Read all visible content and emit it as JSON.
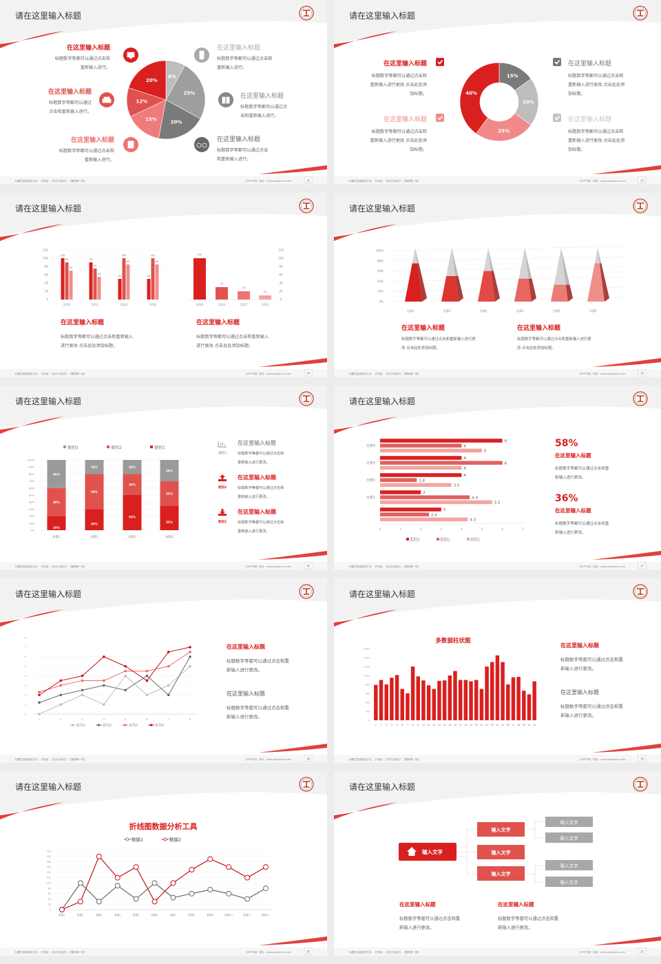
{
  "footer": {
    "left": "标题栏批量修改方法：【开始】-【幻灯片版式】-【替换第一张】",
    "right": "【OPPT网】 网址：www.pptgenius.com"
  },
  "colors": {
    "red": "#d9201f",
    "mid_red": "#e0524d",
    "pink": "#f08a8a",
    "light_pink": "#f2a5a0",
    "gray": "#9e9e9e",
    "dark_gray": "#6e6e6e",
    "light_gray": "#bdbdbd"
  },
  "slides": [
    {
      "title": "请在这里输入标题",
      "page": "12"
    },
    {
      "title": "请在这里输入标题",
      "page": "13"
    },
    {
      "title": "请在这里输入标题",
      "page": "14"
    },
    {
      "title": "请在这里输入标题",
      "page": "15"
    },
    {
      "title": "请在这里输入标题",
      "page": "16"
    },
    {
      "title": "请在这里输入标题",
      "page": "17"
    },
    {
      "title": "请在这里输入标题",
      "page": "18"
    },
    {
      "title": "请在这里输入标题",
      "page": "19"
    },
    {
      "title": "请在这里输入标题",
      "page": "20"
    },
    {
      "title": "请在这里输入标题",
      "page": "21"
    }
  ],
  "slide1": {
    "items": [
      {
        "title": "在这里输入标题",
        "lines": [
          "标题数字等都可以通过点击和",
          "重新输入进行。"
        ],
        "icon": "monitor-icon",
        "color": "#d9201f"
      },
      {
        "title": "在这里输入标题",
        "lines": [
          "标题数字等都可以通过",
          "点击和重新输入进行。"
        ],
        "icon": "car-icon",
        "color": "#e0524d"
      },
      {
        "title": "在这里输入标题",
        "lines": [
          "标题数字等都可以通过点击和",
          "重新输入进行。"
        ],
        "icon": "book-icon",
        "color": "#ee7070"
      },
      {
        "title": "在这里输入标题",
        "lines": [
          "标题数字等都可以通过点击和",
          "重新输入进行。"
        ],
        "icon": "phone-icon",
        "color": "#aaaaaa"
      },
      {
        "title": "在这里输入标题",
        "lines": [
          "标题数字等都可以通过点",
          "击和重新输入进行。"
        ],
        "icon": "binoculars-icon",
        "color": "#888888"
      },
      {
        "title": "在这里输入标题",
        "lines": [
          "标题数字等都可以通过点击",
          "和重新输入进行。"
        ],
        "icon": "bicycle-icon",
        "color": "#666666"
      }
    ]
  },
  "slide2": {
    "items": [
      {
        "title": "在这里输入标题",
        "lines": [
          "标题数字等都可以通过点击和",
          "重新输入进行更改 点击此处添",
          "加标题。"
        ],
        "color": "#d9201f"
      },
      {
        "title": "在这里输入标题",
        "lines": [
          "标题数字等都可以通过点击和",
          "重新输入进行更改 点击此处添",
          "加标题。"
        ],
        "color": "#f08a8a"
      },
      {
        "title": "在这里输入标题",
        "lines": [
          "标题数字等都可以通过点击和",
          "重新输入进行更改 点击此处添",
          "加标题。"
        ],
        "color": "#777777"
      },
      {
        "title": "在这里输入标题",
        "lines": [
          "标题数字等都可以通过点击和",
          "重新输入进行更改 点击此处添",
          "加标题。"
        ],
        "color": "#c4c4c4"
      }
    ]
  },
  "slide3": {
    "blocks": [
      {
        "title": "在这里输入标题",
        "lines": [
          "标题数字等都可以通过点击和重新输入",
          "进行更改 点击此处添加标题。"
        ]
      },
      {
        "title": "在这里输入标题",
        "lines": [
          "标题数字等都可以通过点击和重新输入",
          "进行更改 点击此处添加标题。"
        ]
      }
    ]
  },
  "slide4": {
    "blocks": [
      {
        "title": "在这里输入标题",
        "lines": [
          "标题数字等都可以通过点击和重新输入进行更",
          "改 点击此处添加标题。"
        ]
      },
      {
        "title": "在这里输入标题",
        "lines": [
          "标题数字等都可以通过点击和重新输入进行更",
          "改 点击此处添加标题。"
        ]
      }
    ]
  },
  "slide5": {
    "items": [
      {
        "label": "类别3",
        "title": "在这里输入标题",
        "lines": [
          "标题数字等都可以通过点击和",
          "重新输入进行更改。"
        ],
        "icon": "bar-chart-icon",
        "color": "#888888"
      },
      {
        "label": "类别2",
        "title": "在这里输入标题",
        "lines": [
          "标题数字等都可以通过点击和",
          "重新输入进行更改。"
        ],
        "icon": "upload-icon",
        "color": "#d9201f"
      },
      {
        "label": "类别1",
        "title": "在这里输入标题",
        "lines": [
          "标题数字等都可以通过点击和",
          "重新输入进行更改。"
        ],
        "icon": "download-icon",
        "color": "#d9201f"
      }
    ]
  },
  "slide6": {
    "stats": [
      {
        "value": "58%",
        "title": "在这里输入标题",
        "lines": [
          "标题数字等都可以通过点击和重",
          "新输入进行更改。"
        ]
      },
      {
        "value": "36%",
        "title": "在这里输入标题",
        "lines": [
          "标题数字等都可以通过点击和重",
          "新输入进行更改。"
        ]
      }
    ]
  },
  "slide7": {
    "blocks": [
      {
        "title": "在这里输入标题",
        "lines": [
          "标题数字等都可以通过点击和重",
          "新输入进行更改。"
        ],
        "color": "#d9201f"
      },
      {
        "title": "在这里输入标题",
        "lines": [
          "标题数字等都可以通过点击和重",
          "新输入进行更改。"
        ],
        "color": "#555555"
      }
    ]
  },
  "slide8": {
    "blocks": [
      {
        "title": "在这里输入标题",
        "lines": [
          "标题数字等都可以通过点击和重",
          "新输入进行更改。"
        ],
        "color": "#d9201f"
      },
      {
        "title": "在这里输入标题",
        "lines": [
          "标题数字等都可以通过点击和重",
          "新输入进行更改。"
        ],
        "color": "#555555"
      }
    ]
  },
  "slide10": {
    "root": "输入文字",
    "mid": [
      "输入文字",
      "输入文字",
      "输入文字"
    ],
    "leaves": [
      "输入文字",
      "输入文字",
      "输入文字",
      "输入文字"
    ],
    "blocks": [
      {
        "title": "在这里输入标题",
        "lines": [
          "标题数字等都可以通过点击和重",
          "新输入进行更改。"
        ]
      },
      {
        "title": "在这里输入标题",
        "lines": [
          "标题数字等都可以通过点击和重",
          "新输入进行更改。"
        ]
      }
    ]
  },
  "chart_data": [
    {
      "type": "pie",
      "labels": [
        "8%",
        "25%",
        "20%",
        "15%",
        "12%",
        "20%"
      ],
      "values": [
        8,
        25,
        20,
        15,
        12,
        20
      ],
      "colors": [
        "#bdbdbd",
        "#9e9e9e",
        "#7a7a7a",
        "#ef7b7b",
        "#e05050",
        "#d9201f"
      ]
    },
    {
      "type": "pie",
      "donut": true,
      "labels": [
        "15%",
        "20%",
        "25%",
        "40%"
      ],
      "values": [
        15,
        20,
        25,
        40
      ],
      "colors": [
        "#7a7a7a",
        "#bdbdbd",
        "#f08a8a",
        "#d9201f"
      ]
    },
    {
      "type": "bar",
      "categories": [
        "2010",
        "2012",
        "2014",
        "2016"
      ],
      "series": [
        {
          "values": [
            100,
            90,
            50,
            50
          ]
        },
        {
          "values": [
            90,
            75,
            100,
            100
          ]
        },
        {
          "values": [
            70,
            55,
            85,
            85
          ]
        }
      ],
      "ylim": [
        0,
        120
      ],
      "yticks": [
        "0",
        "20",
        "40",
        "60",
        "80",
        "100",
        "120"
      ]
    },
    {
      "type": "bar",
      "categories": [
        "2016",
        "2014",
        "2012",
        "2010"
      ],
      "values": [
        100,
        30,
        20,
        10
      ],
      "ylim": [
        0,
        120
      ],
      "yticks": [
        "0",
        "20",
        "40",
        "60",
        "80",
        "100",
        "120"
      ],
      "axis": "right"
    },
    {
      "type": "bar",
      "style": "3d-pyramid",
      "categories": [
        "分类1",
        "分类2",
        "分类3",
        "分类4",
        "分类5",
        "分类6"
      ],
      "values": [
        75,
        50,
        60,
        45,
        33,
        75
      ],
      "ylim": [
        0,
        100
      ],
      "yticks": [
        "0%",
        "20%",
        "40%",
        "60%",
        "80%",
        "100%"
      ]
    },
    {
      "type": "bar",
      "stacked": "percent",
      "categories": [
        "分类1",
        "分类2",
        "分类3",
        "分类4"
      ],
      "series": [
        {
          "name": "类别1",
          "values": [
            20,
            30,
            50,
            35
          ],
          "labels": [
            "20%",
            "30%",
            "50%",
            "35%"
          ],
          "color": "#d9201f"
        },
        {
          "name": "类别2",
          "values": [
            40,
            50,
            30,
            35
          ],
          "labels": [
            "40%",
            "50%",
            "30%",
            "35%"
          ],
          "color": "#e0524d"
        },
        {
          "name": "类别3",
          "values": [
            40,
            20,
            20,
            30
          ],
          "labels": [
            "40%",
            "20%",
            "20%",
            "30%"
          ],
          "color": "#9a9a9a"
        }
      ],
      "legend": [
        "类别3",
        "类别2",
        "类别1"
      ],
      "legend_position": "top",
      "yticks": [
        "0%",
        "10%",
        "20%",
        "30%",
        "40%",
        "50%",
        "60%",
        "70%",
        "80%",
        "90%",
        "100%"
      ]
    },
    {
      "type": "bar",
      "orientation": "horizontal",
      "categories": [
        "分类4",
        "分类3",
        "分类2",
        "分类1",
        ""
      ],
      "series": [
        {
          "name": "类别3",
          "values": [
            6,
            4,
            4,
            2,
            3
          ],
          "color": "#d9201f"
        },
        {
          "name": "类别2",
          "values": [
            4,
            6,
            1.8,
            4.4,
            2.4
          ],
          "color": "#e06060"
        },
        {
          "name": "类别1",
          "values": [
            5,
            4,
            3.5,
            5.5,
            4.3
          ],
          "color": "#f2a5a0"
        }
      ],
      "xlim": [
        0,
        7
      ],
      "xticks": [
        "0",
        "1",
        "2",
        "3",
        "4",
        "5",
        "6",
        "7"
      ],
      "legend_position": "bottom"
    },
    {
      "type": "line",
      "categories": [
        "1",
        "2",
        "3",
        "4",
        "5",
        "6",
        "7",
        "8"
      ],
      "series": [
        {
          "name": "系列1",
          "values": [
            0,
            1,
            2,
            1,
            4,
            2,
            3,
            5
          ],
          "color": "#bdbdbd"
        },
        {
          "name": "系列2",
          "values": [
            1.2,
            2,
            2.5,
            3,
            2.5,
            4,
            2,
            6
          ],
          "color": "#666666"
        },
        {
          "name": "系列3",
          "values": [
            2.3,
            3,
            3.5,
            3.5,
            4.5,
            4.5,
            5,
            6.5
          ],
          "color": "#ec6a6a"
        },
        {
          "name": "系列4",
          "values": [
            2,
            3.5,
            4,
            6,
            5,
            3.5,
            6.5,
            7
          ],
          "color": "#c8101a"
        }
      ],
      "ylim": [
        0,
        8
      ],
      "yticks": [
        "0",
        "1",
        "2",
        "3",
        "4",
        "5",
        "6",
        "7",
        "8"
      ],
      "legend_position": "bottom"
    },
    {
      "type": "bar",
      "title": "多数据柱状图",
      "categories": [
        "1",
        "2",
        "3",
        "4",
        "5",
        "6",
        "7",
        "8",
        "9",
        "10",
        "11",
        "12",
        "13",
        "14",
        "15",
        "16",
        "17",
        "18",
        "19",
        "20",
        "21",
        "22",
        "23",
        "24",
        "25",
        "26",
        "27",
        "28",
        "29",
        "30",
        "31"
      ],
      "values": [
        790,
        900,
        800,
        950,
        1010,
        700,
        600,
        1200,
        980,
        890,
        780,
        700,
        880,
        890,
        1000,
        1100,
        900,
        900,
        870,
        900,
        700,
        1200,
        1300,
        1450,
        1300,
        800,
        960,
        970,
        660,
        580,
        870
      ],
      "ylim": [
        0,
        1600
      ],
      "yticks": [
        "0",
        "200",
        "400",
        "600",
        "800",
        "1,000",
        "1,200",
        "1,400",
        "1,600"
      ],
      "color": "#d9201f"
    },
    {
      "type": "line",
      "title": "折线图数据分析工具",
      "categories": [
        "数据1",
        "数据2",
        "数据3",
        "数据4",
        "数据5",
        "数据6",
        "数据7",
        "数据8",
        "数据9",
        "数据10",
        "数据11",
        "数据12"
      ],
      "series": [
        {
          "name": "数据1",
          "values": [
            0,
            100,
            30,
            90,
            40,
            100,
            45,
            60,
            75,
            60,
            40,
            80
          ],
          "color": "#666666"
        },
        {
          "name": "数据2",
          "values": [
            0,
            30,
            200,
            120,
            160,
            30,
            100,
            150,
            190,
            160,
            120,
            160
          ],
          "color": "#c8101a"
        }
      ],
      "ylim": [
        0,
        220
      ],
      "yticks": [
        "0",
        "20",
        "40",
        "60",
        "80",
        "100",
        "120",
        "140",
        "160",
        "180",
        "200",
        "220"
      ],
      "legend_position": "top"
    }
  ]
}
